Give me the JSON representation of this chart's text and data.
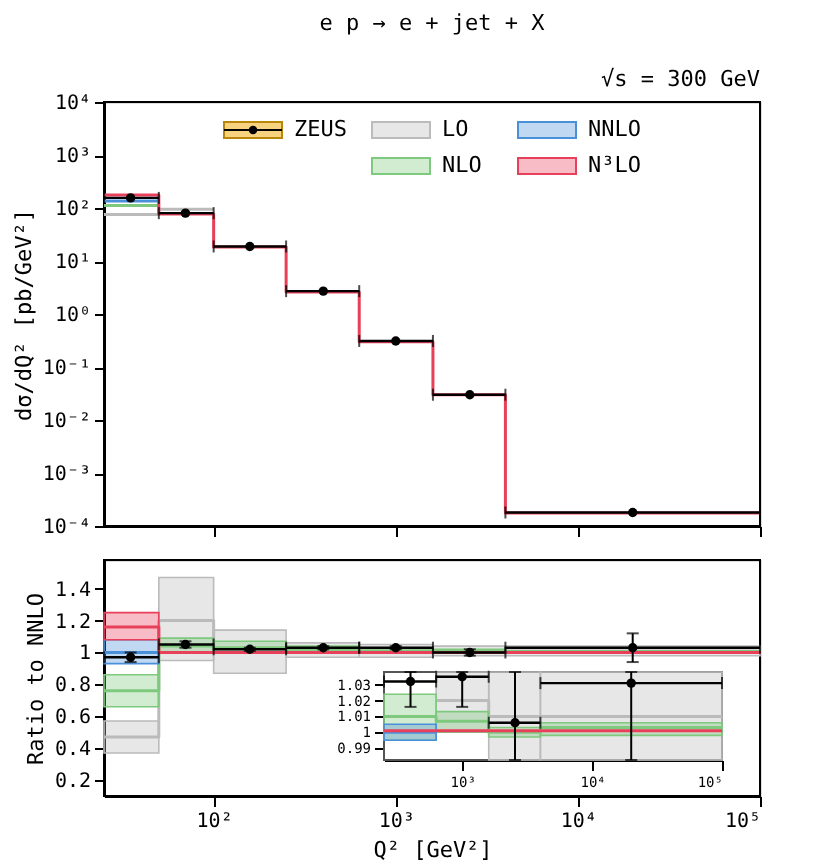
{
  "chart_data": [
    {
      "type": "step",
      "title": "e p → e + jet + X",
      "ylabel": "dσ/dQ² [pb/GeV²]",
      "annotations": [
        "√s = 300 GeV"
      ],
      "log": "xy",
      "xlim": [
        25,
        100000
      ],
      "ylim": [
        0.0001,
        10000
      ],
      "xticks": [
        {
          "value": 100,
          "label": null
        },
        {
          "value": 1000,
          "label": null
        },
        {
          "value": 10000,
          "label": null
        },
        {
          "value": 100000,
          "label": null
        }
      ],
      "yticks": [
        {
          "value": 0.0001,
          "label": "10⁻⁴"
        },
        {
          "value": 0.001,
          "label": "10⁻³"
        },
        {
          "value": 0.01,
          "label": "10⁻²"
        },
        {
          "value": 0.1,
          "label": "10⁻¹"
        },
        {
          "value": 1,
          "label": "10⁰"
        },
        {
          "value": 10,
          "label": "10¹"
        },
        {
          "value": 100,
          "label": "10²"
        },
        {
          "value": 1000,
          "label": "10³"
        },
        {
          "value": 10000,
          "label": "10⁴"
        }
      ],
      "tick_labels": "y",
      "legend": "top",
      "series": [
        {
          "name": "ZEUS",
          "type": "scatter",
          "marker": "circle",
          "color": "#000000",
          "x": [
            35,
            70,
            158,
            400,
            1000,
            2550,
            20000
          ],
          "values": [
            155,
            80,
            18.8,
            2.7,
            0.31,
            0.03,
            0.00018
          ],
          "xerrors": [
            [
              25,
              50
            ],
            [
              50,
              100
            ],
            [
              100,
              250
            ],
            [
              250,
              630
            ],
            [
              630,
              1600
            ],
            [
              1600,
              4000
            ],
            [
              4000,
              100000
            ]
          ]
        },
        {
          "name": "LO",
          "color": "#bbbbbb",
          "x": [
            25,
            50,
            100
          ],
          "values": [
            75,
            95,
            95
          ]
        },
        {
          "name": "NLO",
          "color": "#7fc97f",
          "x": [
            25,
            50
          ],
          "values": [
            112,
            112
          ]
        },
        {
          "name": "NNLO",
          "color": "#4a90d9",
          "x": [
            25,
            50
          ],
          "values": [
            136,
            136
          ]
        },
        {
          "name": "N³LO",
          "color": "#e8405a",
          "x": [
            25,
            50,
            100,
            250,
            630,
            1600,
            4000,
            100000
          ],
          "values": [
            175,
            77,
            18.4,
            2.6,
            0.3,
            0.03,
            0.000175,
            0.000175
          ]
        }
      ]
    },
    {
      "type": "step",
      "xlabel": "Q² [GeV²]",
      "ylabel": "Ratio to NNLO",
      "log": "x",
      "xlim": [
        25,
        100000
      ],
      "ylim": [
        0.1,
        1.58
      ],
      "xticks": [
        {
          "value": 100,
          "label": "10²"
        },
        {
          "value": 1000,
          "label": "10³"
        },
        {
          "value": 10000,
          "label": "10⁴"
        },
        {
          "value": 100000,
          "label": "10⁵"
        }
      ],
      "yticks": [
        0.2,
        0.4,
        0.6,
        0.8,
        1,
        1.2,
        1.4
      ],
      "series": [
        {
          "color": "#bbbbbb",
          "x": [
            25,
            50,
            100,
            250,
            630,
            1600,
            4000,
            100000
          ],
          "values": [
            0.47,
            1.2,
            1.0,
            1.01,
            1.01,
            1.01,
            1.01,
            1.01
          ],
          "lower": [
            0.37,
            0.95,
            0.87,
            0.97,
            0.97,
            0.98,
            0.98,
            0.98
          ],
          "upper": [
            0.57,
            1.47,
            1.14,
            1.06,
            1.05,
            1.04,
            1.04,
            1.04
          ]
        },
        {
          "color": "#7fc97f",
          "x": [
            25,
            50,
            100,
            250,
            630,
            1600,
            4000,
            100000
          ],
          "values": [
            0.76,
            1.04,
            1.03,
            1.02,
            1.01,
            1.01,
            1.0,
            1.0
          ],
          "lower": [
            0.66,
            1.0,
            1.0,
            1.0,
            1.0,
            1.0,
            1.0,
            1.0
          ],
          "upper": [
            0.86,
            1.09,
            1.07,
            1.04,
            1.03,
            1.02,
            1.01,
            1.01
          ]
        },
        {
          "color": "#4a90d9",
          "x": [
            25,
            50
          ],
          "values": [
            1,
            1
          ],
          "lower": [
            0.93,
            0.93
          ],
          "upper": [
            1.08,
            1.08
          ]
        },
        {
          "color": "#e8405a",
          "x": [
            25,
            50,
            100,
            250,
            630,
            1600,
            4000,
            100000
          ],
          "values": [
            1.16,
            1.0,
            1.0,
            1.0,
            1.0,
            1.0,
            1.0,
            1.0
          ],
          "lower": [
            1.08,
            0.995,
            0.995,
            0.995,
            0.995,
            0.995,
            0.995,
            null
          ],
          "upper": [
            1.25,
            1.005,
            1.005,
            1.005,
            1.005,
            1.005,
            1.005,
            null
          ]
        },
        {
          "type": "scatter",
          "marker": "circle",
          "color": "#000000",
          "x": [
            35,
            70,
            158,
            400,
            1000,
            2550,
            20000
          ],
          "values": [
            0.97,
            1.05,
            1.02,
            1.03,
            1.03,
            1.0,
            1.03
          ],
          "errors": [
            0.03,
            0.02,
            0.01,
            0.01,
            0.01,
            0.02,
            0.09
          ],
          "xerrors": [
            [
              25,
              50
            ],
            [
              50,
              100
            ],
            [
              100,
              250
            ],
            [
              250,
              630
            ],
            [
              630,
              1600
            ],
            [
              1600,
              4000
            ],
            [
              4000,
              100000
            ]
          ]
        }
      ]
    },
    {
      "type": "step",
      "log": "x",
      "xlim": [
        250,
        100000
      ],
      "ylim": [
        0.9825,
        1.038
      ],
      "xticks": [
        {
          "value": 1000,
          "label": "10³"
        },
        {
          "value": 10000,
          "label": "10⁴"
        },
        {
          "value": 100000,
          "label": "10⁵"
        }
      ],
      "yticks": [
        0.99,
        1,
        1.01,
        1.02,
        1.03
      ],
      "series": [
        {
          "color": "#bbbbbb",
          "x": [
            630,
            1600,
            4000,
            100000
          ],
          "values": [
            1.02,
            1.01,
            1.01,
            1.01
          ],
          "lower": [
            1.0,
            0.9825,
            0.9825,
            0.9825
          ],
          "upper": [
            1.038,
            1.038,
            1.038,
            1.038
          ]
        },
        {
          "color": "#7fc97f",
          "x": [
            250,
            630,
            1600,
            4000,
            100000
          ],
          "values": [
            1.01,
            1.007,
            1.0,
            1.003,
            1.003
          ],
          "lower": [
            0.995,
            1.0,
            0.997,
            0.998,
            0.998
          ],
          "upper": [
            1.024,
            1.013,
            1.003,
            1.006,
            1.006
          ]
        },
        {
          "color": "#4a90d9",
          "x": [
            250,
            630
          ],
          "values": [
            1,
            1
          ],
          "lower": [
            0.995,
            0.995
          ],
          "upper": [
            1.005,
            1.005
          ]
        },
        {
          "color": "#e8405a",
          "x": [
            250,
            630,
            1600,
            4000,
            100000
          ],
          "values": [
            1.001,
            1.001,
            1.001,
            1.001,
            1.001
          ]
        },
        {
          "type": "scatter",
          "marker": "circle",
          "color": "#000000",
          "x": [
            400,
            1000,
            2550,
            20000
          ],
          "values": [
            1.032,
            1.035,
            1.006,
            1.031
          ],
          "errors": [
            [
              1.016,
              1.038
            ],
            [
              1.016,
              1.038
            ],
            [
              0.9825,
              1.038
            ],
            [
              0.9825,
              1.038
            ]
          ],
          "xerrors": [
            [
              250,
              630
            ],
            [
              630,
              1600
            ],
            [
              1600,
              4000
            ],
            [
              4000,
              100000
            ]
          ]
        }
      ]
    }
  ]
}
